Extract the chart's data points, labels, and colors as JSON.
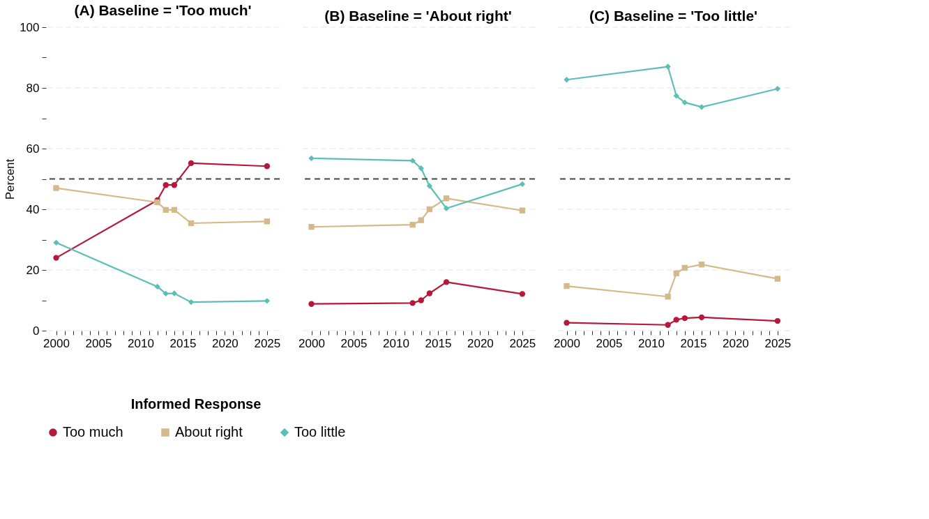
{
  "chart_data": [
    {
      "type": "line",
      "title": "(A) Baseline = 'Too much'",
      "ylabel": "Percent",
      "x": [
        2000,
        2012,
        2013,
        2014,
        2016,
        2025
      ],
      "xlim": [
        1998.8,
        2026.5
      ],
      "ylim": [
        0,
        100
      ],
      "xticks": [
        2000,
        {
          "value": 2001,
          "label": null
        },
        {
          "value": 2002,
          "label": null
        },
        {
          "value": 2003,
          "label": null
        },
        {
          "value": 2004,
          "label": null
        },
        2005,
        {
          "value": 2006,
          "label": null
        },
        {
          "value": 2007,
          "label": null
        },
        {
          "value": 2008,
          "label": null
        },
        {
          "value": 2009,
          "label": null
        },
        2010,
        {
          "value": 2011,
          "label": null
        },
        {
          "value": 2012,
          "label": null
        },
        {
          "value": 2013,
          "label": null
        },
        {
          "value": 2014,
          "label": null
        },
        2015,
        {
          "value": 2016,
          "label": null
        },
        {
          "value": 2017,
          "label": null
        },
        {
          "value": 2018,
          "label": null
        },
        {
          "value": 2019,
          "label": null
        },
        2020,
        {
          "value": 2021,
          "label": null
        },
        {
          "value": 2022,
          "label": null
        },
        {
          "value": 2023,
          "label": null
        },
        {
          "value": 2024,
          "label": null
        },
        2025
      ],
      "yticks": [
        0,
        {
          "value": 10,
          "label": null
        },
        20,
        {
          "value": 30,
          "label": null
        },
        40,
        {
          "value": 50,
          "label": null
        },
        60,
        {
          "value": 70,
          "label": null
        },
        80,
        {
          "value": 90,
          "label": null
        },
        100
      ],
      "grid": "y",
      "legend": "bottom",
      "legend_title": "Informed Response",
      "ref_lines": [
        {
          "axis": "y",
          "value": 50,
          "label": null,
          "color": "#444444",
          "line_style": "dashed"
        }
      ],
      "series": [
        {
          "name": "Too much",
          "color": "#b5183a",
          "marker": "circle",
          "values": [
            24,
            43,
            48,
            48,
            55.2,
            54.2
          ]
        },
        {
          "name": "About right",
          "color": "#d4b98a",
          "marker": "square",
          "values": [
            47,
            42.3,
            39.8,
            39.8,
            35.4,
            36
          ]
        },
        {
          "name": "Too little",
          "color": "#5bbfb5",
          "marker": "diamond",
          "values": [
            29,
            14.5,
            12.2,
            12.3,
            9.4,
            9.8
          ]
        }
      ]
    },
    {
      "type": "line",
      "title": "(B) Baseline = 'About right'",
      "x": [
        2000,
        2012,
        2013,
        2014,
        2016,
        2025
      ],
      "xlim": [
        1998.8,
        2026.5
      ],
      "ylim": [
        0,
        100
      ],
      "xticks": [
        2000,
        {
          "value": 2001,
          "label": null
        },
        {
          "value": 2002,
          "label": null
        },
        {
          "value": 2003,
          "label": null
        },
        {
          "value": 2004,
          "label": null
        },
        2005,
        {
          "value": 2006,
          "label": null
        },
        {
          "value": 2007,
          "label": null
        },
        {
          "value": 2008,
          "label": null
        },
        {
          "value": 2009,
          "label": null
        },
        2010,
        {
          "value": 2011,
          "label": null
        },
        {
          "value": 2012,
          "label": null
        },
        {
          "value": 2013,
          "label": null
        },
        {
          "value": 2014,
          "label": null
        },
        2015,
        {
          "value": 2016,
          "label": null
        },
        {
          "value": 2017,
          "label": null
        },
        {
          "value": 2018,
          "label": null
        },
        {
          "value": 2019,
          "label": null
        },
        2020,
        {
          "value": 2021,
          "label": null
        },
        {
          "value": 2022,
          "label": null
        },
        {
          "value": 2023,
          "label": null
        },
        {
          "value": 2024,
          "label": null
        },
        2025
      ],
      "yticks": [
        0,
        20,
        40,
        60,
        80,
        100
      ],
      "grid": "y",
      "tick_labels": "x",
      "ref_lines": [
        {
          "axis": "y",
          "value": 50,
          "label": null,
          "color": "#444444",
          "line_style": "dashed"
        }
      ],
      "series": [
        {
          "name": "Too much",
          "color": "#b5183a",
          "marker": "circle",
          "values": [
            8.8,
            9.1,
            10,
            12.3,
            16,
            12.1
          ]
        },
        {
          "name": "About right",
          "color": "#d4b98a",
          "marker": "square",
          "values": [
            34.2,
            34.9,
            36.4,
            40,
            43.6,
            39.6
          ]
        },
        {
          "name": "Too little",
          "color": "#5bbfb5",
          "marker": "diamond",
          "values": [
            56.8,
            56,
            53.5,
            47.7,
            40.3,
            48.3
          ]
        }
      ]
    },
    {
      "type": "line",
      "title": "(C) Baseline = 'Too little'",
      "x": [
        2000,
        2012,
        2013,
        2014,
        2016,
        2025
      ],
      "xlim": [
        1998.8,
        2026.5
      ],
      "ylim": [
        0,
        100
      ],
      "xticks": [
        2000,
        {
          "value": 2001,
          "label": null
        },
        {
          "value": 2002,
          "label": null
        },
        {
          "value": 2003,
          "label": null
        },
        {
          "value": 2004,
          "label": null
        },
        2005,
        {
          "value": 2006,
          "label": null
        },
        {
          "value": 2007,
          "label": null
        },
        {
          "value": 2008,
          "label": null
        },
        {
          "value": 2009,
          "label": null
        },
        2010,
        {
          "value": 2011,
          "label": null
        },
        {
          "value": 2012,
          "label": null
        },
        {
          "value": 2013,
          "label": null
        },
        {
          "value": 2014,
          "label": null
        },
        2015,
        {
          "value": 2016,
          "label": null
        },
        {
          "value": 2017,
          "label": null
        },
        {
          "value": 2018,
          "label": null
        },
        {
          "value": 2019,
          "label": null
        },
        2020,
        {
          "value": 2021,
          "label": null
        },
        {
          "value": 2022,
          "label": null
        },
        {
          "value": 2023,
          "label": null
        },
        {
          "value": 2024,
          "label": null
        },
        2025
      ],
      "yticks": [
        0,
        20,
        40,
        60,
        80,
        100
      ],
      "grid": "y",
      "tick_labels": "x",
      "ref_lines": [
        {
          "axis": "y",
          "value": 50,
          "label": null,
          "color": "#444444",
          "line_style": "dashed"
        }
      ],
      "series": [
        {
          "name": "Too much",
          "color": "#b5183a",
          "marker": "circle",
          "values": [
            2.6,
            1.9,
            3.6,
            4.1,
            4.4,
            3.2
          ]
        },
        {
          "name": "About right",
          "color": "#d4b98a",
          "marker": "square",
          "values": [
            14.7,
            11.2,
            18.9,
            20.7,
            21.8,
            17.1
          ]
        },
        {
          "name": "Too little",
          "color": "#5bbfb5",
          "marker": "diamond",
          "values": [
            82.7,
            87,
            77.4,
            75.2,
            73.7,
            79.7
          ]
        }
      ]
    }
  ]
}
